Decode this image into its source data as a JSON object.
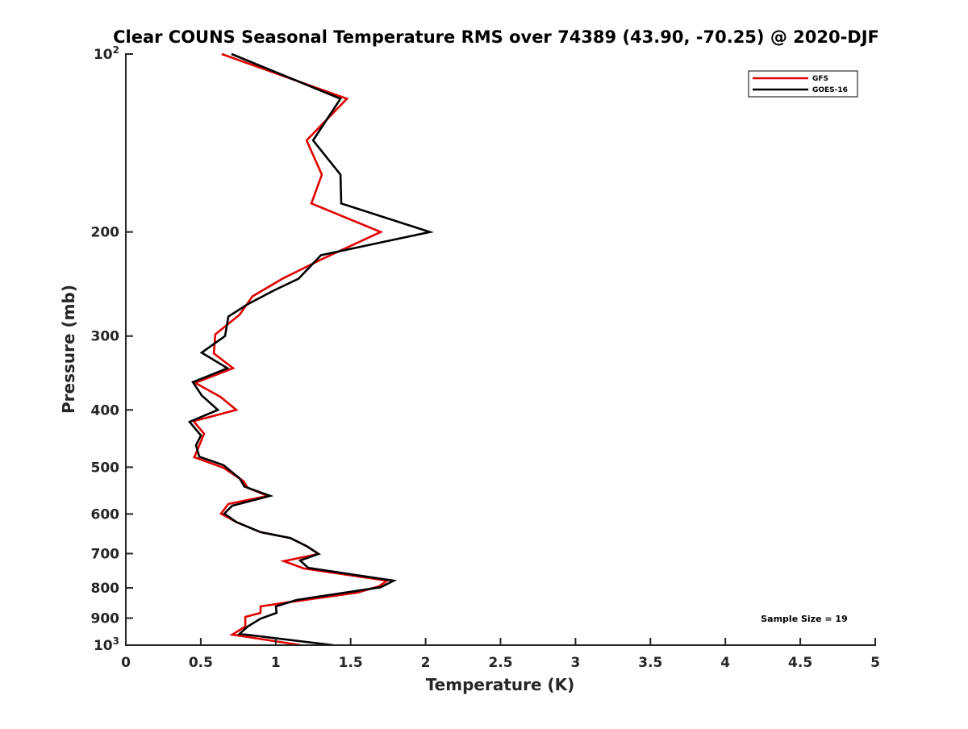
{
  "chart_data": {
    "type": "line",
    "title": "Clear COUNS Seasonal Temperature RMS over 74389 (43.90, -70.25) @ 2020-DJF",
    "xlabel": "Temperature (K)",
    "ylabel": "Pressure (mb)",
    "xlim": [
      0,
      5
    ],
    "ylim": [
      100,
      1000
    ],
    "yscale": "log",
    "y_reversed": true,
    "grid": false,
    "legend_position": "top-right",
    "x_ticks": [
      "0",
      "0.5",
      "1",
      "1.5",
      "2",
      "2.5",
      "3",
      "3.5",
      "4",
      "4.5",
      "5"
    ],
    "x_tick_values": [
      0,
      0.5,
      1,
      1.5,
      2,
      2.5,
      3,
      3.5,
      4,
      4.5,
      5
    ],
    "y_ticks": [
      {
        "value": 100,
        "base": "10",
        "exp": "2"
      },
      {
        "value": 200,
        "label": "200"
      },
      {
        "value": 300,
        "label": "300"
      },
      {
        "value": 400,
        "label": "400"
      },
      {
        "value": 500,
        "label": "500"
      },
      {
        "value": 600,
        "label": "600"
      },
      {
        "value": 700,
        "label": "700"
      },
      {
        "value": 800,
        "label": "800"
      },
      {
        "value": 900,
        "label": "900"
      },
      {
        "value": 1000,
        "base": "10",
        "exp": "3"
      }
    ],
    "annotation": "Sample Size = 19",
    "series": [
      {
        "name": "GFS",
        "color": "#e00000",
        "x": [
          0.64,
          1.475,
          1.206,
          1.308,
          1.238,
          1.701,
          1.297,
          1.044,
          0.845,
          0.759,
          0.597,
          0.587,
          0.716,
          0.463,
          0.63,
          0.737,
          0.452,
          0.522,
          0.457,
          0.651,
          0.786,
          0.813,
          0.947,
          0.684,
          0.635,
          0.737,
          0.899,
          1.098,
          1.206,
          1.286,
          1.055,
          1.189,
          1.744,
          1.69,
          1.545,
          1.044,
          0.899,
          0.899,
          0.797,
          0.797,
          0.71,
          1.168
        ],
        "y": [
          100,
          119,
          140,
          160,
          179,
          200,
          223,
          240,
          257,
          276,
          298,
          321,
          340,
          360,
          380,
          400,
          418,
          439,
          481,
          501,
          528,
          542,
          559,
          577,
          599,
          619,
          644,
          659,
          680,
          701,
          721,
          742,
          778,
          795,
          815,
          849,
          860,
          882,
          896,
          930,
          960,
          1000
        ]
      },
      {
        "name": "GOES-16",
        "color": "#000000",
        "x": [
          0.705,
          1.432,
          1.249,
          1.432,
          1.437,
          2.029,
          1.302,
          1.152,
          0.99,
          0.813,
          0.684,
          0.662,
          0.506,
          0.678,
          0.447,
          0.506,
          0.614,
          0.425,
          0.501,
          0.468,
          0.49,
          0.651,
          0.759,
          0.791,
          0.963,
          0.71,
          0.657,
          0.737,
          0.899,
          1.098,
          1.206,
          1.286,
          1.163,
          1.216,
          1.787,
          1.701,
          1.136,
          1.001,
          1.006,
          0.899,
          0.813,
          0.759,
          1.383
        ],
        "y": [
          100,
          119,
          140,
          160,
          179,
          200,
          219,
          240,
          251,
          265,
          278,
          300,
          320,
          340,
          359,
          378,
          400,
          419,
          442,
          459,
          480,
          496,
          522,
          539,
          559,
          581,
          599,
          619,
          644,
          659,
          680,
          701,
          719,
          740,
          778,
          798,
          839,
          860,
          882,
          902,
          930,
          957,
          1000
        ]
      }
    ]
  }
}
